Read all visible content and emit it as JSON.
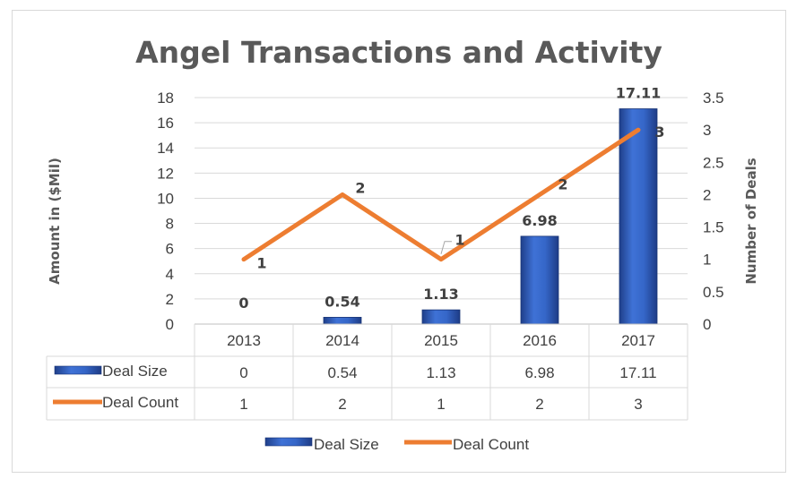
{
  "chart_data": {
    "type": "bar",
    "title": "Angel Transactions and Activity",
    "categories": [
      "2013",
      "2014",
      "2015",
      "2016",
      "2017"
    ],
    "series": [
      {
        "name": "Deal Size",
        "type": "bar",
        "axis": "left",
        "values": [
          0,
          0.54,
          1.13,
          6.98,
          17.11
        ],
        "color": "#2e5cb8"
      },
      {
        "name": "Deal Count",
        "type": "line",
        "axis": "right",
        "values": [
          1,
          2,
          1,
          2,
          3
        ],
        "color": "#ed7d31"
      }
    ],
    "ylabel": "Amount in ($Mil)",
    "y2label": "Number of Deals",
    "ylim": [
      0,
      18
    ],
    "y2lim": [
      0,
      3.5
    ],
    "yticks": [
      "0",
      "2",
      "4",
      "6",
      "8",
      "10",
      "12",
      "14",
      "16",
      "18"
    ],
    "y2ticks": [
      "0",
      "0.5",
      "1",
      "1.5",
      "2",
      "2.5",
      "3",
      "3.5"
    ],
    "bar_labels": [
      "0",
      "0.54",
      "1.13",
      "6.98",
      "17.11"
    ],
    "line_labels": [
      "1",
      "2",
      "1",
      "2",
      "3"
    ],
    "data_table": {
      "rows": [
        {
          "name": "Deal Size",
          "cells": [
            "0",
            "0.54",
            "1.13",
            "6.98",
            "17.11"
          ]
        },
        {
          "name": "Deal Count",
          "cells": [
            "1",
            "2",
            "1",
            "2",
            "3"
          ]
        }
      ]
    },
    "legend": {
      "position": "bottom",
      "entries": [
        "Deal Size",
        "Deal Count"
      ]
    },
    "grid": true
  }
}
